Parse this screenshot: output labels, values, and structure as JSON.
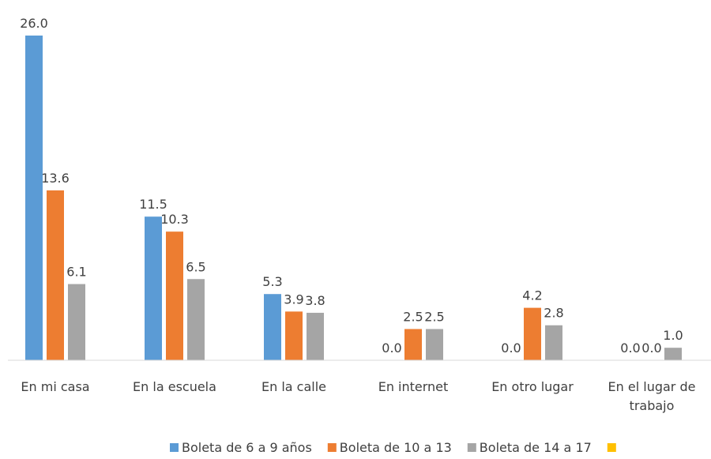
{
  "chart_data": {
    "type": "bar",
    "categories": [
      "En mi casa",
      "En la escuela",
      "En la calle",
      "En internet",
      "En otro lugar",
      "En el lugar de trabajo"
    ],
    "series": [
      {
        "name": "Boleta de 6 a 9 años",
        "color": "#5b9bd5",
        "values": [
          26.0,
          11.5,
          5.3,
          0.0,
          0.0,
          0.0
        ],
        "value_labels": [
          "26.0",
          "11.5",
          "5.3",
          "0.0",
          "0.0",
          "0.0"
        ]
      },
      {
        "name": "Boleta de 10 a 13",
        "color": "#ed7d31",
        "values": [
          13.6,
          10.3,
          3.9,
          2.5,
          4.2,
          0.0
        ],
        "value_labels": [
          "13.6",
          "10.3",
          "3.9",
          "2.5",
          "4.2",
          "0.0"
        ]
      },
      {
        "name": "Boleta de 14 a 17",
        "color": "#a5a5a5",
        "values": [
          6.1,
          6.5,
          3.8,
          2.5,
          2.8,
          1.0
        ],
        "value_labels": [
          "6.1",
          "6.5",
          "3.8",
          "2.5",
          "2.8",
          "1.0"
        ]
      },
      {
        "color": "#ffc000",
        "values": [
          null,
          null,
          null,
          null,
          null,
          null
        ]
      }
    ],
    "ylim": [
      0,
      26
    ]
  }
}
